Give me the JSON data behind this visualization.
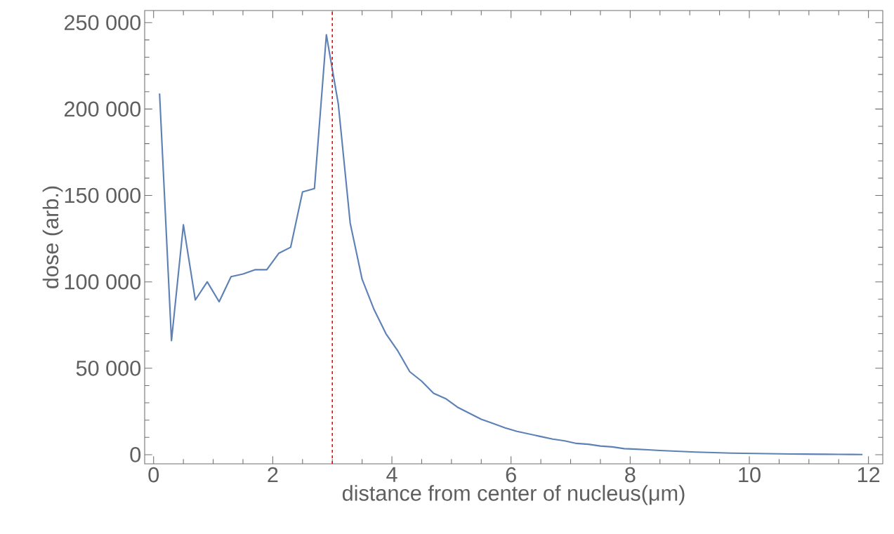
{
  "chart_data": {
    "type": "line",
    "xlabel": "distance from center of nucleus(μm)",
    "ylabel": "dose (arb.)",
    "x": [
      0.1,
      0.3,
      0.5,
      0.7,
      0.9,
      1.1,
      1.3,
      1.5,
      1.7,
      1.9,
      2.1,
      2.3,
      2.5,
      2.7,
      2.9,
      3.1,
      3.3,
      3.5,
      3.7,
      3.9,
      4.1,
      4.3,
      4.5,
      4.7,
      4.9,
      5.1,
      5.3,
      5.5,
      5.7,
      5.9,
      6.1,
      6.3,
      6.5,
      6.7,
      6.9,
      7.1,
      7.3,
      7.5,
      7.7,
      7.9,
      8.1,
      8.3,
      8.5,
      8.7,
      8.9,
      9.1,
      9.3,
      9.5,
      9.7,
      9.9,
      10.1,
      10.3,
      10.5,
      10.7,
      10.9,
      11.1,
      11.3,
      11.5,
      11.7,
      11.9
    ],
    "series": [
      {
        "color": "#5e81b5",
        "values": [
          209000,
          66000,
          133000,
          89500,
          100000,
          88500,
          103000,
          104500,
          107000,
          107000,
          116500,
          120000,
          152000,
          154000,
          243000,
          203000,
          134000,
          101500,
          84000,
          70000,
          60000,
          48000,
          42500,
          35500,
          32500,
          27500,
          24000,
          20500,
          18000,
          15500,
          13500,
          12000,
          10500,
          9000,
          8000,
          6500,
          6000,
          5000,
          4500,
          3500,
          3200,
          2800,
          2400,
          2100,
          1800,
          1500,
          1300,
          1100,
          900,
          800,
          700,
          600,
          500,
          400,
          350,
          300,
          250,
          200,
          150,
          100
        ]
      }
    ],
    "ref_lines": [
      {
        "axis": "x",
        "value": 3,
        "color": "#ff0000",
        "line_style": "dashed"
      }
    ],
    "xlim": [
      -0.15,
      12.24
    ],
    "ylim": [
      -5300,
      257000
    ],
    "xticks": [
      0,
      2,
      4,
      6,
      8,
      10,
      12
    ],
    "yticks": [
      0,
      {
        "value": 50000,
        "label": "50 000"
      },
      {
        "value": 100000,
        "label": "100 000"
      },
      {
        "value": 150000,
        "label": "150 000"
      },
      {
        "value": 200000,
        "label": "200 000"
      },
      {
        "value": 250000,
        "label": "250 000"
      }
    ]
  }
}
